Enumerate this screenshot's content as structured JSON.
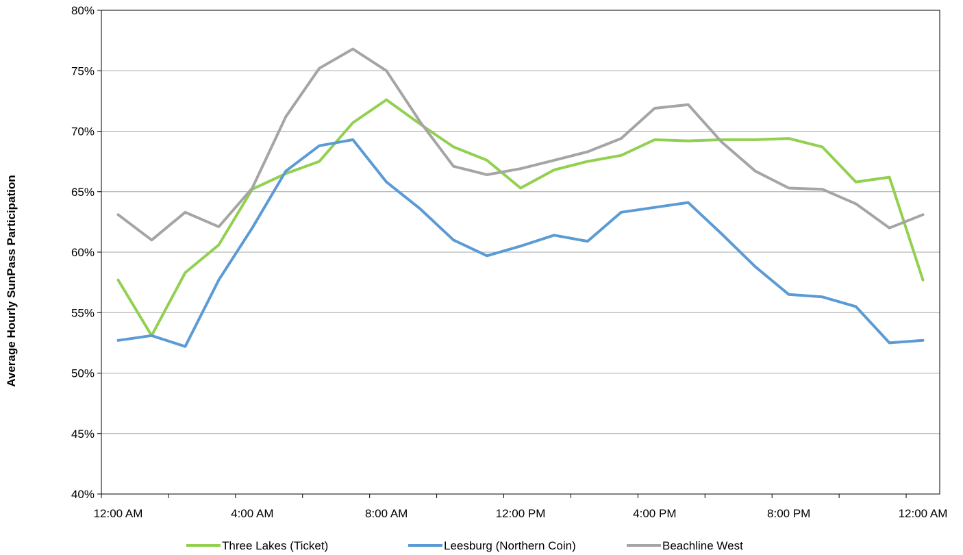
{
  "chart_data": {
    "type": "line",
    "title": "",
    "xlabel": "",
    "ylabel": "Average Hourly SunPass Participation",
    "x": [
      "12:00 AM",
      "1:00 AM",
      "2:00 AM",
      "3:00 AM",
      "4:00 AM",
      "5:00 AM",
      "6:00 AM",
      "7:00 AM",
      "8:00 AM",
      "9:00 AM",
      "10:00 AM",
      "11:00 AM",
      "12:00 PM",
      "1:00 PM",
      "2:00 PM",
      "3:00 PM",
      "4:00 PM",
      "5:00 PM",
      "6:00 PM",
      "7:00 PM",
      "8:00 PM",
      "9:00 PM",
      "10:00 PM",
      "11:00 PM",
      "12:00 AM"
    ],
    "x_tick_labels": [
      {
        "index": 0,
        "label": "12:00 AM"
      },
      {
        "index": 4,
        "label": "4:00 AM"
      },
      {
        "index": 8,
        "label": "8:00 AM"
      },
      {
        "index": 12,
        "label": "12:00 PM"
      },
      {
        "index": 16,
        "label": "4:00 PM"
      },
      {
        "index": 20,
        "label": "8:00 PM"
      },
      {
        "index": 24,
        "label": "12:00 AM"
      }
    ],
    "y_ticks": [
      "40%",
      "45%",
      "50%",
      "55%",
      "60%",
      "65%",
      "70%",
      "75%",
      "80%"
    ],
    "ylim": [
      40,
      80
    ],
    "grid": true,
    "legend_position": "bottom",
    "series": [
      {
        "name": "Three Lakes (Ticket)",
        "color": "#92d050",
        "values": [
          57.7,
          53.1,
          58.3,
          60.6,
          65.2,
          66.5,
          67.5,
          70.7,
          72.6,
          70.6,
          68.7,
          67.6,
          65.3,
          66.8,
          67.5,
          68.0,
          69.3,
          69.2,
          69.3,
          69.3,
          69.4,
          68.7,
          65.8,
          66.2,
          57.7
        ]
      },
      {
        "name": "Leesburg (Northern Coin)",
        "color": "#5b9bd5",
        "values": [
          52.7,
          53.1,
          52.2,
          57.7,
          62.0,
          66.7,
          68.8,
          69.3,
          65.8,
          63.6,
          61.0,
          59.7,
          60.5,
          61.4,
          60.9,
          63.3,
          63.7,
          64.1,
          61.5,
          58.8,
          56.5,
          56.3,
          55.5,
          52.5,
          52.7
        ]
      },
      {
        "name": "Beachline West",
        "color": "#a5a5a5",
        "values": [
          63.1,
          61.0,
          63.3,
          62.1,
          65.3,
          71.2,
          75.2,
          76.8,
          75.0,
          70.8,
          67.1,
          66.4,
          66.9,
          67.6,
          68.3,
          69.4,
          71.9,
          72.2,
          69.1,
          66.7,
          65.3,
          65.2,
          64.0,
          62.0,
          63.1
        ]
      }
    ]
  }
}
